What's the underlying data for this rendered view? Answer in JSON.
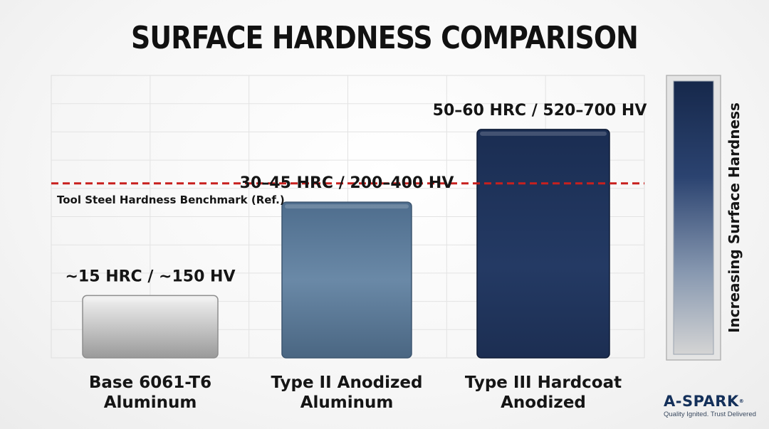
{
  "title": "SURFACE HARDNESS COMPARISON",
  "brand": {
    "name": "A-SPARK",
    "mark": "®",
    "tagline": "Quality Ignited. Trust Delivered"
  },
  "colors": {
    "base_bar": "#c9c9c9",
    "type2_bar": "#5f7d9a",
    "type3_bar": "#1f3357",
    "benchmark_line": "#c8201e",
    "scale_top": "#16284b",
    "scale_bottom": "#c4c4c4"
  },
  "chart_data": {
    "type": "bar",
    "title": "SURFACE HARDNESS COMPARISON",
    "categories_lines": [
      [
        "Base 6061-T6",
        "Aluminum"
      ],
      [
        "Type II Anodized",
        "Aluminum"
      ],
      [
        "Type III Hardcoat",
        "Anodized"
      ]
    ],
    "value_labels": [
      "~15 HRC / ~150 HV",
      "30–45 HRC / 200–400 HV",
      "50–60 HRC / 520–700 HV"
    ],
    "values": [
      15,
      37.5,
      55
    ],
    "ylim": [
      0,
      68
    ],
    "grid": true,
    "benchmark": {
      "label": "Tool Steel Hardness Benchmark (Ref.)",
      "value": 42
    },
    "scale_bar_label": "Increasing Surface Hardness"
  }
}
